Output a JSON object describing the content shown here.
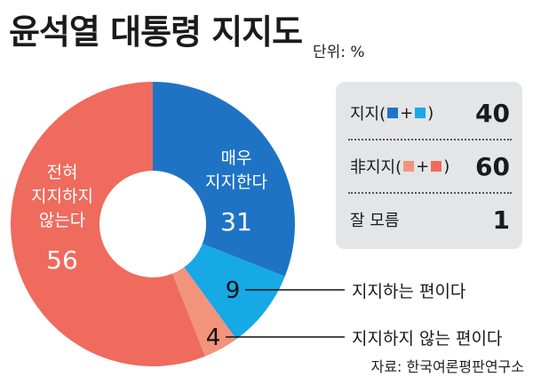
{
  "title": "윤석열 대통령 지지도",
  "unit": "단위: %",
  "chart_data": {
    "type": "pie",
    "title": "윤석열 대통령 지지도",
    "unit": "%",
    "slices": [
      {
        "label_lines": [
          "매우",
          "지지한다"
        ],
        "value": 31,
        "color": "#1f73c4"
      },
      {
        "label": "지지하는 편이다",
        "value": 9,
        "color": "#17a8e6"
      },
      {
        "label": "지지하지 않는 편이다",
        "value": 4,
        "color": "#f2947b"
      },
      {
        "label_lines": [
          "전혀",
          "지지하지",
          "않는다"
        ],
        "value": 56,
        "color": "#ee6b5e"
      }
    ],
    "summary": [
      {
        "label": "지지(",
        "label_end": ")",
        "swatches": [
          "#1f73c4",
          "#17a8e6"
        ],
        "value": "40"
      },
      {
        "label": "非지지(",
        "label_end": ")",
        "swatches": [
          "#f2947b",
          "#ee6b5e"
        ],
        "value": "60"
      },
      {
        "label": "잘 모름",
        "value": "1"
      }
    ]
  },
  "plus": "+",
  "source": "자료: 한국여론평판연구소"
}
